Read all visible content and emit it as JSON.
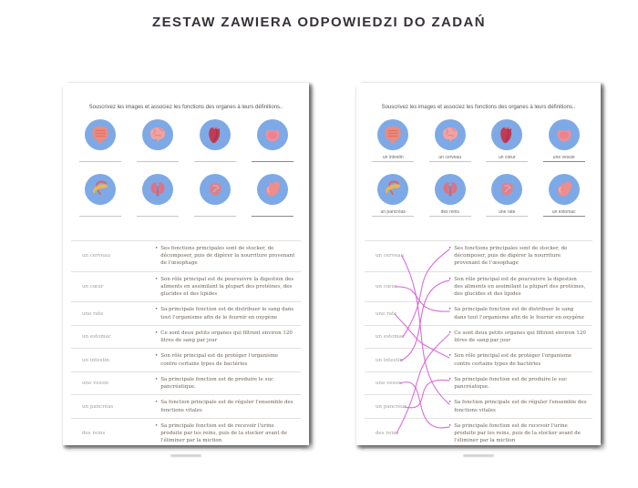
{
  "title": "ZESTAW ZAWIERA ODPOWIEDZI DO ZADAŃ",
  "worksheet": {
    "instruction": "Souscrivez les images et associez les fonctions des organes à leurs définitions..",
    "organs": [
      {
        "id": "intestine",
        "label": "un intestin"
      },
      {
        "id": "brain",
        "label": "un cerveau"
      },
      {
        "id": "heart",
        "label": "un cœur"
      },
      {
        "id": "bladder",
        "label": "une vessie"
      },
      {
        "id": "pancreas",
        "label": "un pancréas"
      },
      {
        "id": "kidneys",
        "label": "des reins"
      },
      {
        "id": "spleen",
        "label": "une rate"
      },
      {
        "id": "stomach",
        "label": "un estomac"
      }
    ],
    "match_rows": [
      {
        "name": "un cerveau",
        "definition": "Ses fonctions principales sont de stocker, de décomposer, puis de digérer la nourriture provenant de l'œsophage"
      },
      {
        "name": "un cœur",
        "definition": "Son rôle principal est de poursuivre la digestion des aliments en assimilant la plupart des protéines, des glucides et des lipides"
      },
      {
        "name": "une rate",
        "definition": "Sa principale fonction est de distribuer le sang dans tout l'organisme afin de le fournir en oxygène"
      },
      {
        "name": "un estomac",
        "definition": "Ce sont deux petits organes qui filtrent environ 120 litres de sang par jour"
      },
      {
        "name": "un intestin",
        "definition": "Son rôle principal est de protéger l'organisme contre certains types de bactéries"
      },
      {
        "name": "une vessie",
        "definition": "Sa principale fonction est de produire le suc pancréatique."
      },
      {
        "name": "un pancréas",
        "definition": "Sa fonction principale est de réguler l'ensemble des fonctions vitales"
      },
      {
        "name": "des reins",
        "definition": "Sa principale fonction est de recevoir l'urine produite par les reins, puis de la stocker avant de l'éliminer par la miction"
      }
    ],
    "answer_connections": [
      [
        0,
        6
      ],
      [
        1,
        2
      ],
      [
        2,
        4
      ],
      [
        3,
        0
      ],
      [
        4,
        1
      ],
      [
        5,
        7
      ],
      [
        6,
        5
      ],
      [
        7,
        3
      ]
    ]
  },
  "colors": {
    "circle_blue": "#7ea9e7",
    "connector_pink": "#d55ed5"
  }
}
